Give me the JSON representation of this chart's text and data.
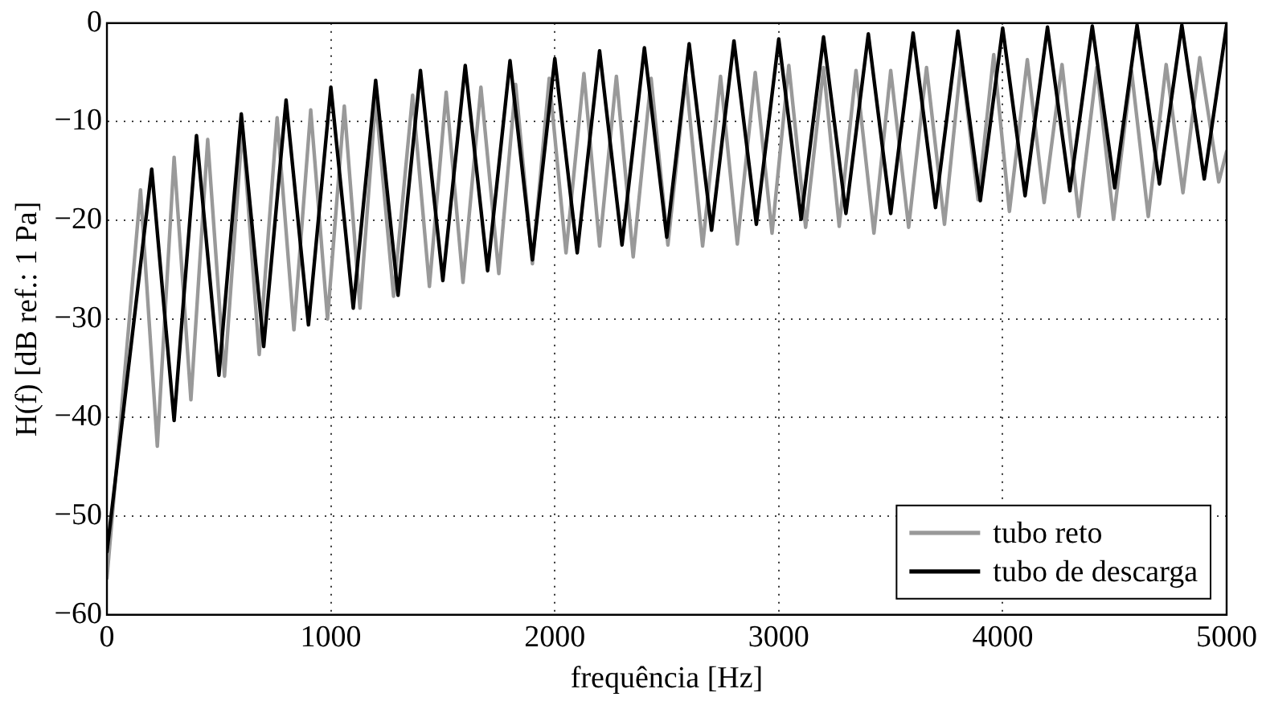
{
  "chart_data": {
    "type": "line",
    "xlabel": "frequência [Hz]",
    "ylabel": "H(f) [dB ref.: 1 Pa]",
    "xlim": [
      0,
      5000
    ],
    "ylim": [
      -60,
      0
    ],
    "xticks": [
      0,
      1000,
      2000,
      3000,
      4000,
      5000
    ],
    "yticks": [
      -60,
      -50,
      -40,
      -30,
      -20,
      -10,
      0
    ],
    "grid": true,
    "legend": "bottom right",
    "line_style": "solid",
    "marker": "none",
    "series": [
      {
        "name": "tubo reto",
        "color": "#999999",
        "x": [
          0,
          150,
          225,
          300,
          375,
          450,
          525,
          605,
          680,
          760,
          835,
          910,
          985,
          1060,
          1130,
          1200,
          1280,
          1365,
          1440,
          1515,
          1590,
          1670,
          1750,
          1825,
          1900,
          1975,
          2050,
          2130,
          2200,
          2275,
          2350,
          2430,
          2505,
          2585,
          2660,
          2740,
          2815,
          2895,
          2970,
          3045,
          3120,
          3200,
          3270,
          3345,
          3425,
          3500,
          3580,
          3660,
          3740,
          3815,
          3890,
          3960,
          4030,
          4110,
          4185,
          4265,
          4340,
          4420,
          4495,
          4575,
          4650,
          4730,
          4805,
          4880,
          4965,
          5000
        ],
        "values": [
          -56.3,
          -16.9,
          -42.9,
          -13.6,
          -38.2,
          -11.8,
          -35.8,
          -10.5,
          -33.6,
          -9.6,
          -31.1,
          -8.8,
          -30.0,
          -8.4,
          -28.9,
          -7.7,
          -27.7,
          -7.3,
          -26.7,
          -7.0,
          -26.3,
          -6.5,
          -25.4,
          -6.2,
          -24.4,
          -5.6,
          -23.3,
          -5.1,
          -22.6,
          -5.4,
          -23.7,
          -5.6,
          -22.5,
          -5.4,
          -22.6,
          -5.4,
          -22.4,
          -5.0,
          -21.3,
          -4.3,
          -20.7,
          -4.5,
          -20.6,
          -4.8,
          -21.3,
          -4.8,
          -20.7,
          -4.5,
          -20.4,
          -3.7,
          -17.9,
          -3.2,
          -19.1,
          -3.7,
          -18.2,
          -4.2,
          -19.6,
          -4.5,
          -19.9,
          -4.8,
          -19.6,
          -4.2,
          -17.2,
          -3.5,
          -16.1,
          -13.0
        ]
      },
      {
        "name": "tubo de descarga",
        "color": "#000000",
        "x": [
          0,
          200,
          300,
          400,
          500,
          600,
          700,
          800,
          900,
          1000,
          1100,
          1200,
          1300,
          1400,
          1500,
          1600,
          1700,
          1800,
          1900,
          2000,
          2100,
          2200,
          2300,
          2400,
          2500,
          2600,
          2700,
          2800,
          2900,
          3000,
          3100,
          3200,
          3300,
          3400,
          3500,
          3600,
          3700,
          3800,
          3900,
          4000,
          4100,
          4200,
          4300,
          4400,
          4500,
          4600,
          4700,
          4800,
          4900,
          5000
        ],
        "values": [
          -53.6,
          -14.8,
          -40.3,
          -11.4,
          -35.7,
          -9.2,
          -32.8,
          -7.8,
          -30.6,
          -6.5,
          -28.9,
          -5.8,
          -27.6,
          -4.8,
          -26.1,
          -4.3,
          -25.1,
          -3.8,
          -24.0,
          -3.6,
          -23.3,
          -2.8,
          -22.5,
          -2.5,
          -21.7,
          -2.1,
          -21.0,
          -1.8,
          -20.4,
          -1.6,
          -19.9,
          -1.4,
          -19.3,
          -1.1,
          -19.3,
          -1.0,
          -18.7,
          -0.8,
          -18.0,
          -0.5,
          -17.5,
          -0.4,
          -17.0,
          -0.3,
          -16.7,
          -0.2,
          -16.3,
          -0.2,
          -15.8,
          -0.2
        ]
      }
    ]
  }
}
